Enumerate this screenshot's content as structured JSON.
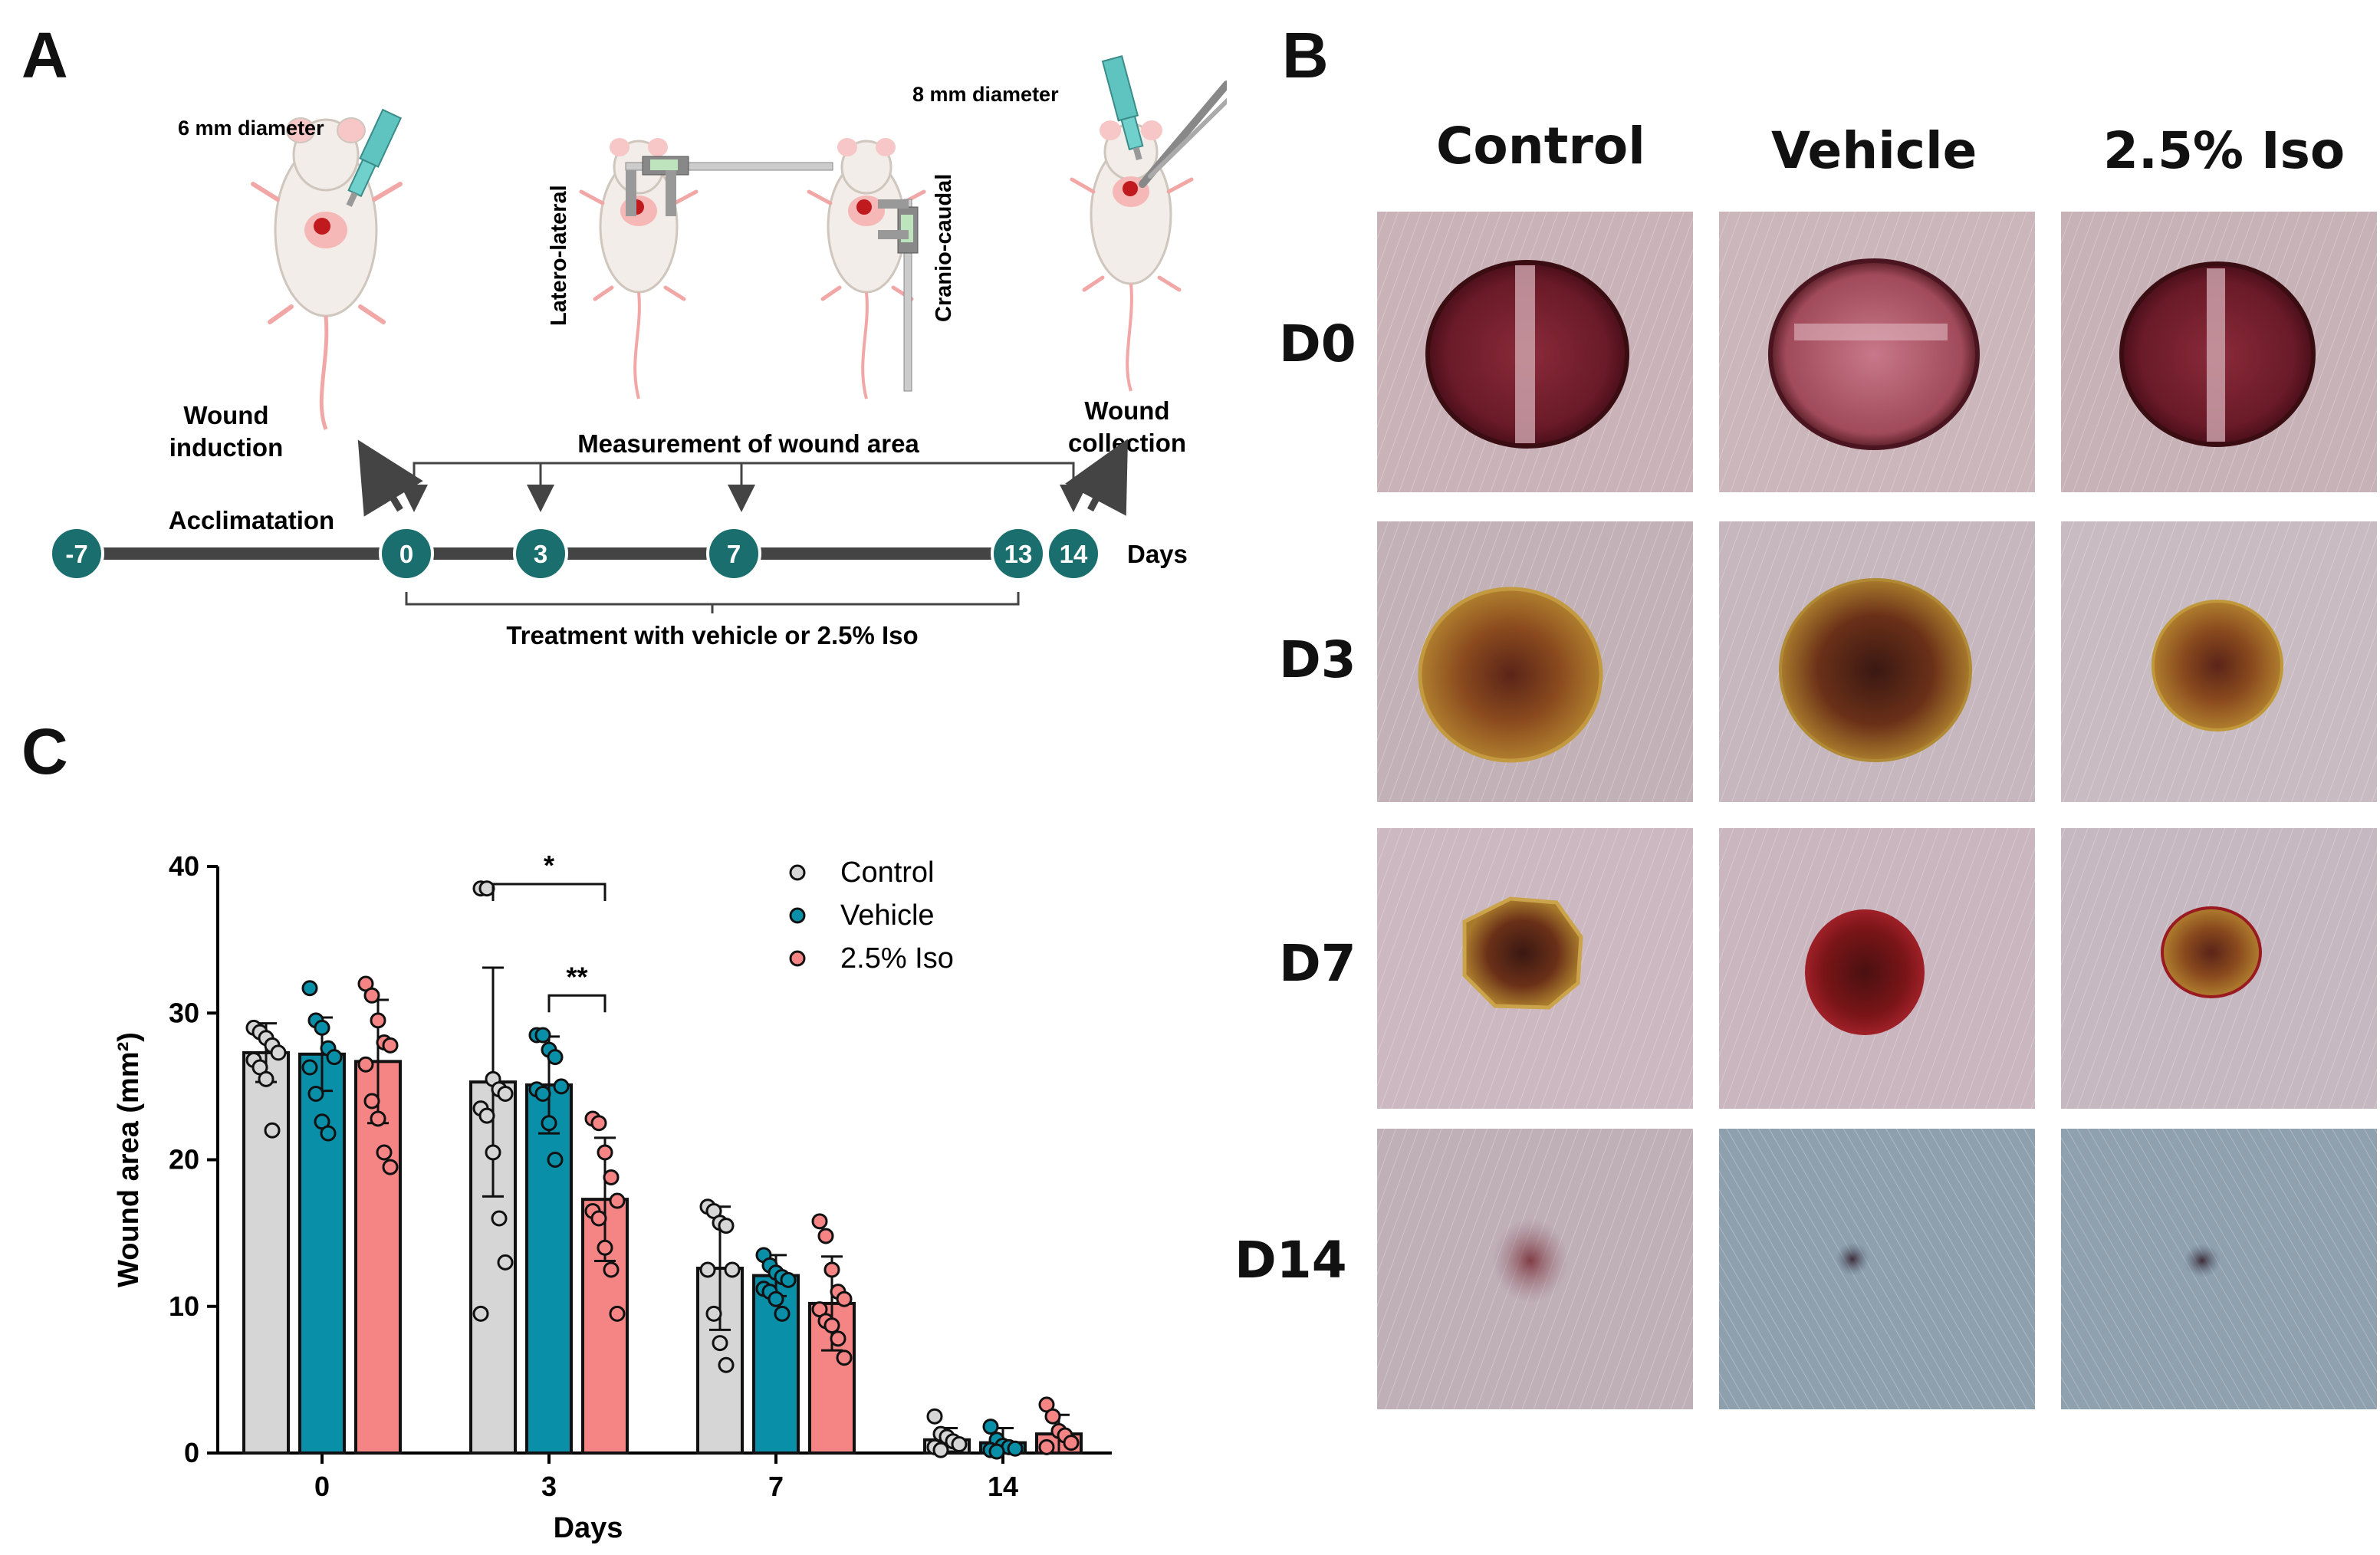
{
  "panels": {
    "a": "A",
    "b": "B",
    "c": "C"
  },
  "timeline": {
    "diameter_6": "6 mm diameter",
    "diameter_8": "8 mm diameter",
    "latero_lateral": "Latero-lateral",
    "cranio_caudal": "Cranio-caudal",
    "wound_induction_1": "Wound",
    "wound_induction_2": "induction",
    "wound_collection_1": "Wound",
    "wound_collection_2": "collection",
    "measurement": "Measurement of wound area",
    "acclimatation": "Acclimatation",
    "treatment": "Treatment with vehicle or 2.5% Iso",
    "days": "Days",
    "nodes": [
      "-7",
      "0",
      "3",
      "7",
      "13",
      "14"
    ]
  },
  "photos": {
    "columns": [
      "Control",
      "Vehicle",
      "2.5% Iso"
    ],
    "rows": [
      "D0",
      "D3",
      "D7",
      "D14"
    ]
  },
  "colors": {
    "Control": "#d6d6d6",
    "Vehicle": "#0a8fa8",
    "2.5% Iso": "#f58585",
    "timeline_node": "#1a6e6e"
  },
  "chart_data": {
    "type": "bar",
    "xlabel": "Days",
    "ylabel": "Wound area (mm²)",
    "ylim": [
      0,
      40
    ],
    "yticks": [
      0,
      10,
      20,
      30,
      40
    ],
    "categories": [
      "0",
      "3",
      "7",
      "14"
    ],
    "legend_position": "top-right",
    "series": [
      {
        "name": "Control",
        "values": [
          27.3,
          25.3,
          12.6,
          0.9
        ],
        "sd": [
          2.0,
          7.8,
          4.2,
          0.8
        ],
        "points": [
          [
            29,
            28.7,
            28.3,
            27.8,
            27.3,
            26.8,
            26.3,
            25.5,
            22
          ],
          [
            38.5,
            38.5,
            25.5,
            24.8,
            24.5,
            23.5,
            23,
            20.5,
            16,
            13,
            9.5
          ],
          [
            16.8,
            16.5,
            15.7,
            15.5,
            12.5,
            12.5,
            9.5,
            7.5,
            6
          ],
          [
            2.5,
            1.3,
            1.1,
            0.8,
            0.6,
            0.4,
            0.2
          ]
        ]
      },
      {
        "name": "Vehicle",
        "values": [
          27.2,
          25.1,
          12.1,
          0.7
        ],
        "sd": [
          2.5,
          3.3,
          1.4,
          1.0
        ],
        "points": [
          [
            31.7,
            29.5,
            29,
            27.6,
            27,
            26.3,
            24.5,
            22.6,
            21.8
          ],
          [
            28.5,
            28.5,
            27.5,
            27,
            25,
            24.8,
            24.5,
            22.5,
            20
          ],
          [
            13.5,
            12.8,
            12.3,
            12.0,
            11.8,
            11.2,
            11,
            10.5,
            9.5
          ],
          [
            1.8,
            0.9,
            0.5,
            0.4,
            0.3,
            0.2,
            0.1
          ]
        ]
      },
      {
        "name": "2.5% Iso",
        "values": [
          26.7,
          17.3,
          10.2,
          1.3
        ],
        "sd": [
          4.2,
          4.2,
          3.2,
          1.3
        ],
        "points": [
          [
            32,
            31.2,
            29.5,
            28,
            27.8,
            26.5,
            24,
            22.8,
            20.5,
            19.5
          ],
          [
            22.8,
            22.5,
            20.5,
            18.8,
            17.2,
            16.5,
            16,
            14,
            12.5,
            9.5
          ],
          [
            15.8,
            14.8,
            12.5,
            11,
            10.5,
            9.8,
            9,
            8.7,
            7.8,
            6.5
          ],
          [
            3.3,
            2.5,
            1.5,
            1.2,
            0.7,
            0.4
          ]
        ]
      }
    ],
    "annotations": [
      {
        "text": "*",
        "from": "Control",
        "to": "2.5% Iso",
        "category": "3"
      },
      {
        "text": "**",
        "from": "Vehicle",
        "to": "2.5% Iso",
        "category": "3"
      }
    ]
  }
}
